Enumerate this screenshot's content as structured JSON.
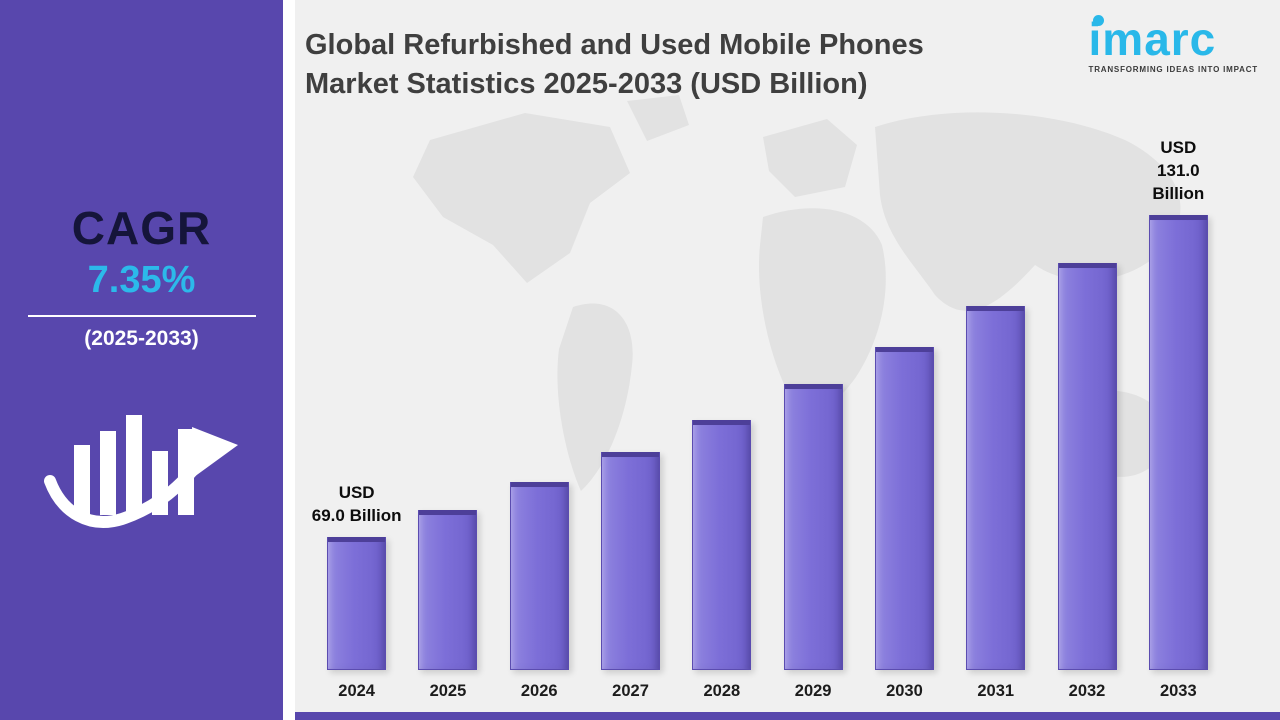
{
  "sidebar": {
    "cagr_label": "CAGR",
    "cagr_value": "7.35%",
    "period": "(2025-2033)"
  },
  "logo": {
    "name": "imarc",
    "tagline": "TRANSFORMING IDEAS INTO IMPACT",
    "color": "#29b8e9"
  },
  "colors": {
    "sidebar_bg": "#5847ad",
    "bar_fill": "#7d6fd8",
    "accent_cyan": "#29b8e9",
    "chart_bg": "#f0f0f0",
    "map_gray": "#e2e2e2",
    "title_text": "#3f3f3f"
  },
  "chart_data": {
    "type": "bar",
    "title": "Global Refurbished and Used Mobile Phones Market Statistics 2025-2033 (USD Billion)",
    "unit": "USD Billion",
    "categories": [
      "2024",
      "2025",
      "2026",
      "2027",
      "2028",
      "2029",
      "2030",
      "2031",
      "2032",
      "2033"
    ],
    "values": [
      69.0,
      74.1,
      79.5,
      85.4,
      91.6,
      98.4,
      105.6,
      113.4,
      121.7,
      131.0
    ],
    "first_bar_label": "USD 69.0 Billion",
    "last_bar_label": "USD 131.0 Billion",
    "annotations": [
      {
        "index": 0,
        "lines": [
          "USD",
          "69.0 Billion"
        ]
      },
      {
        "index": 9,
        "lines": [
          "USD",
          "131.0 Billion"
        ]
      }
    ],
    "ylim": [
      0,
      140
    ],
    "grid": false,
    "legend": false,
    "bar_color": "#7d6fd8"
  }
}
